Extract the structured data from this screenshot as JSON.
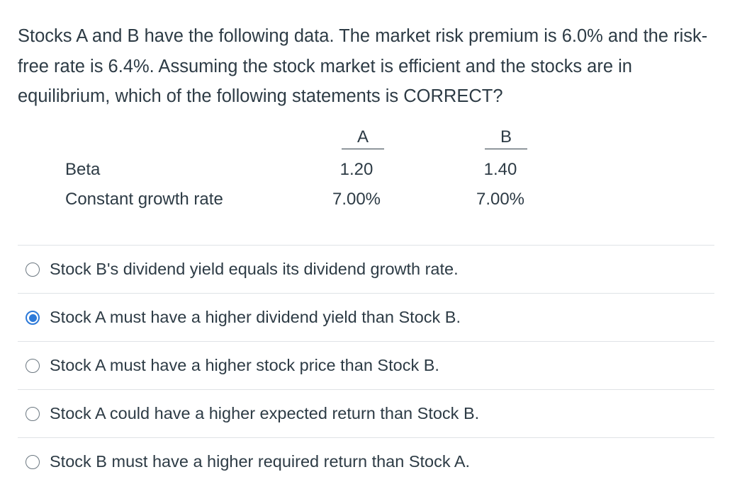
{
  "question": {
    "text": "Stocks A and B have the following data. The market risk premium is 6.0% and the risk-free rate is 6.4%. Assuming the stock market is efficient and the stocks are in equilibrium, which of the following statements is CORRECT?"
  },
  "table": {
    "columns": [
      "A",
      "B"
    ],
    "rows": [
      {
        "label": "Beta",
        "a": "1.20",
        "b": "1.40"
      },
      {
        "label": "Constant growth rate",
        "a": "7.00%",
        "b": "7.00%"
      }
    ]
  },
  "answers": [
    {
      "text": "Stock B's dividend yield equals its dividend growth rate.",
      "selected": false
    },
    {
      "text": "Stock A must have a higher dividend yield than Stock B.",
      "selected": true
    },
    {
      "text": "Stock A must have a higher stock price than Stock B.",
      "selected": false
    },
    {
      "text": "Stock A could have a higher expected return than Stock B.",
      "selected": false
    },
    {
      "text": "Stock B must have a higher required return than Stock A.",
      "selected": false
    }
  ],
  "colors": {
    "text": "#2d3b45",
    "accent": "#2d7ad9",
    "divider": "#dfe3e6"
  }
}
